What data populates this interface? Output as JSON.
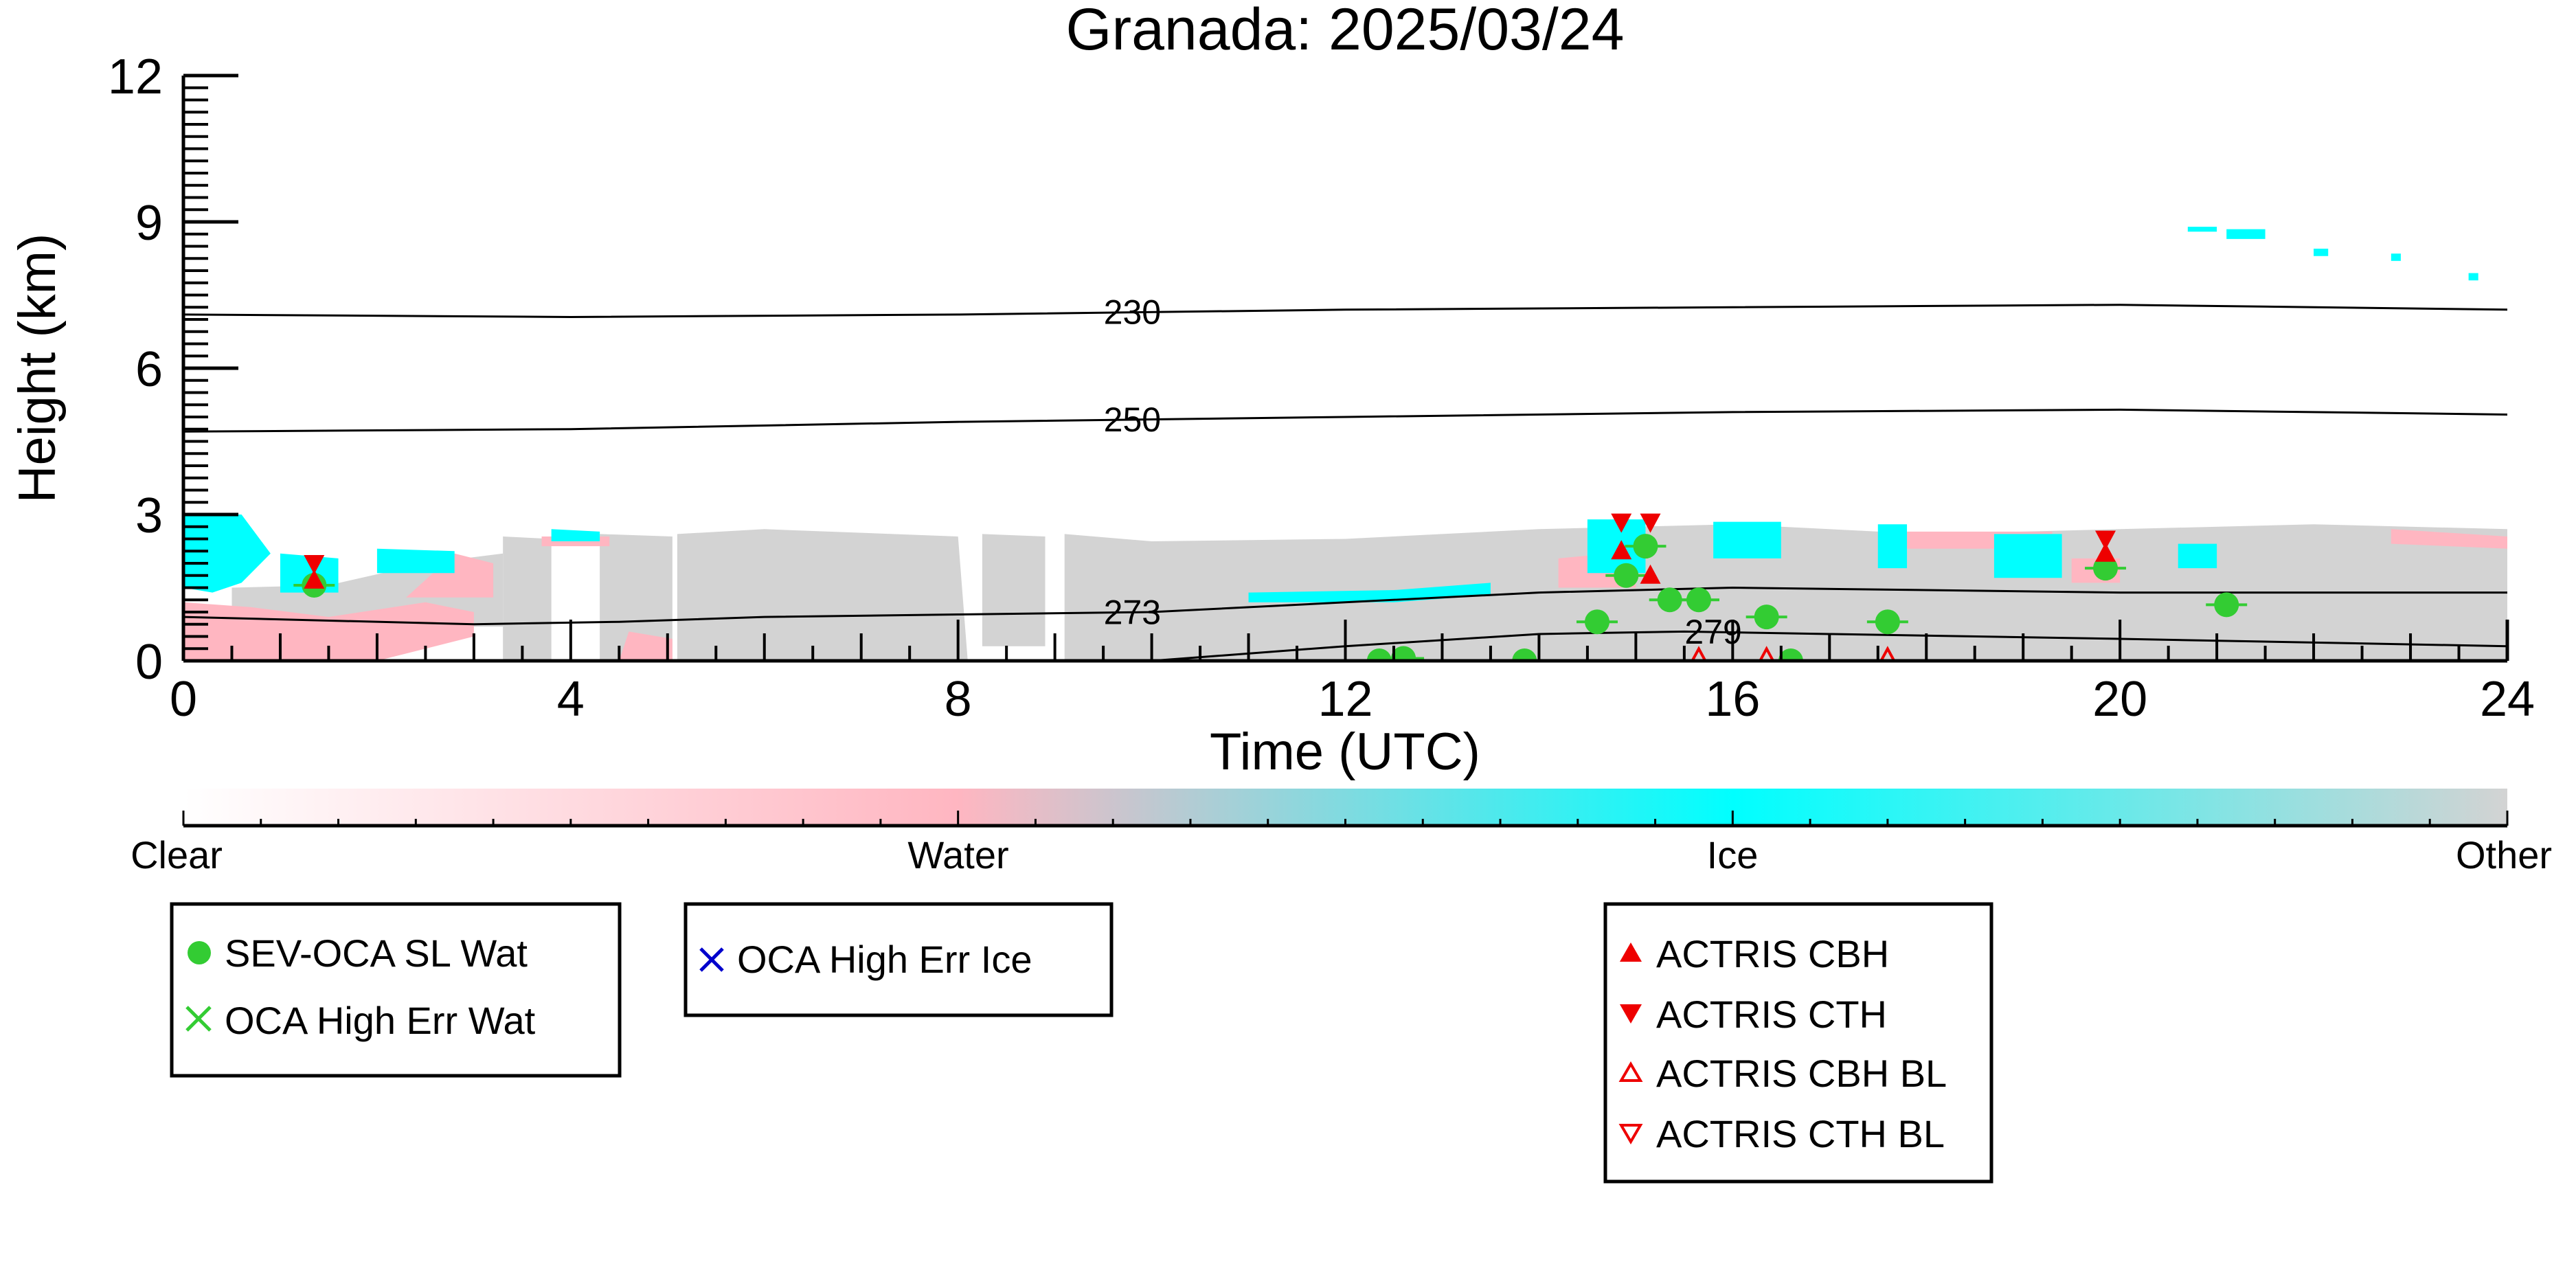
{
  "chart_data": {
    "type": "scatter",
    "title": "Granada: 2025/03/24",
    "xlabel": "Time (UTC)",
    "ylabel": "Height (km)",
    "xlim": [
      0,
      24
    ],
    "ylim": [
      0,
      12
    ],
    "x_ticks": [
      "0",
      "4",
      "8",
      "12",
      "16",
      "20",
      "24"
    ],
    "y_ticks": [
      "0",
      "3",
      "6",
      "9",
      "12"
    ],
    "colors": {
      "clear": "#ffffff",
      "water": "#ffb6c1",
      "ice": "#00ffff",
      "other": "#d3d3d3",
      "sev_oca": "#33cc33",
      "oca_err_ice": "#0000cc",
      "actris": "#ee0000"
    },
    "colorbar": {
      "labels": [
        "Clear",
        "Water",
        "Ice",
        "Other"
      ]
    },
    "contours": [
      {
        "label": "230",
        "x": [
          0,
          4,
          8,
          12,
          16,
          20,
          24
        ],
        "y": [
          7.1,
          7.05,
          7.1,
          7.2,
          7.25,
          7.3,
          7.2
        ],
        "label_x": 9.8
      },
      {
        "label": "250",
        "x": [
          0,
          4,
          8,
          12,
          16,
          20,
          24
        ],
        "y": [
          4.7,
          4.75,
          4.9,
          5.0,
          5.1,
          5.15,
          5.05
        ],
        "label_x": 9.8
      },
      {
        "label": "273",
        "x": [
          0,
          3,
          4.5,
          6,
          8,
          10,
          12,
          14,
          16,
          18,
          20,
          24
        ],
        "y": [
          0.9,
          0.75,
          0.8,
          0.9,
          0.95,
          1.0,
          1.2,
          1.4,
          1.5,
          1.45,
          1.4,
          1.4
        ],
        "label_x": 9.8
      },
      {
        "label": "279",
        "x": [
          10,
          12,
          14,
          15.5,
          17,
          20,
          24
        ],
        "y": [
          0.0,
          0.3,
          0.55,
          0.6,
          0.55,
          0.45,
          0.3
        ],
        "label_x": 15.8
      }
    ],
    "series": [
      {
        "name": "SEV-OCA SL Wat",
        "marker": "circle",
        "points": [
          {
            "x": 1.35,
            "y": 1.55
          },
          {
            "x": 12.35,
            "y": 0.0
          },
          {
            "x": 12.6,
            "y": 0.05
          },
          {
            "x": 13.85,
            "y": 0.0
          },
          {
            "x": 14.6,
            "y": 0.8
          },
          {
            "x": 14.9,
            "y": 1.75
          },
          {
            "x": 15.1,
            "y": 2.35
          },
          {
            "x": 15.35,
            "y": 1.25
          },
          {
            "x": 15.65,
            "y": 1.25
          },
          {
            "x": 16.35,
            "y": 0.9
          },
          {
            "x": 16.6,
            "y": 0.0
          },
          {
            "x": 17.6,
            "y": 0.8
          },
          {
            "x": 19.85,
            "y": 1.9
          },
          {
            "x": 21.1,
            "y": 1.15
          }
        ]
      },
      {
        "name": "OCA High Err Wat",
        "marker": "x",
        "points": []
      },
      {
        "name": "OCA High Err Ice",
        "marker": "x",
        "points": []
      },
      {
        "name": "ACTRIS CBH",
        "marker": "triangle-up",
        "points": [
          {
            "x": 1.35,
            "y": 1.65
          },
          {
            "x": 14.85,
            "y": 2.25
          },
          {
            "x": 15.15,
            "y": 1.75
          },
          {
            "x": 19.85,
            "y": 2.2
          }
        ]
      },
      {
        "name": "ACTRIS CTH",
        "marker": "triangle-down",
        "points": [
          {
            "x": 1.35,
            "y": 2.0
          },
          {
            "x": 14.85,
            "y": 2.85
          },
          {
            "x": 15.15,
            "y": 2.85
          },
          {
            "x": 19.85,
            "y": 2.5
          }
        ]
      },
      {
        "name": "ACTRIS CBH BL",
        "marker": "triangle-up-open",
        "points": [
          {
            "x": 15.65,
            "y": 0.05
          },
          {
            "x": 16.35,
            "y": 0.05
          },
          {
            "x": 17.6,
            "y": 0.05
          }
        ]
      },
      {
        "name": "ACTRIS CTH BL",
        "marker": "triangle-down-open",
        "points": []
      }
    ]
  },
  "legends": [
    {
      "items": [
        {
          "label": "SEV-OCA SL Wat",
          "marker": "circle",
          "color": "#33cc33"
        },
        {
          "label": "OCA High Err Wat",
          "marker": "x",
          "color": "#33cc33"
        }
      ]
    },
    {
      "items": [
        {
          "label": "OCA High Err Ice",
          "marker": "x",
          "color": "#0000cc"
        }
      ]
    },
    {
      "items": [
        {
          "label": "ACTRIS CBH",
          "marker": "triangle-up",
          "color": "#ee0000"
        },
        {
          "label": "ACTRIS CTH",
          "marker": "triangle-down",
          "color": "#ee0000"
        },
        {
          "label": "ACTRIS CBH BL",
          "marker": "triangle-up-open",
          "color": "#ee0000"
        },
        {
          "label": "ACTRIS CTH BL",
          "marker": "triangle-down-open",
          "color": "#ee0000"
        }
      ]
    }
  ]
}
